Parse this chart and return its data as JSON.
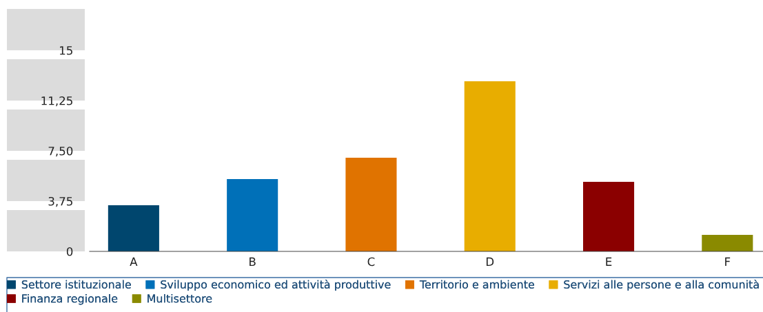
{
  "chart_data": {
    "type": "bar",
    "categories": [
      "A",
      "B",
      "C",
      "D",
      "E",
      "F"
    ],
    "series": [
      {
        "name": "Settore istituzionale",
        "color": "#00466e",
        "values": [
          3.44,
          null,
          null,
          null,
          null,
          null
        ]
      },
      {
        "name": "Sviluppo economico ed attività produttive",
        "color": "#0070b8",
        "values": [
          null,
          5.39,
          null,
          null,
          null,
          null
        ]
      },
      {
        "name": "Territorio e ambiente",
        "color": "#e07300",
        "values": [
          null,
          null,
          6.99,
          null,
          null,
          null
        ]
      },
      {
        "name": "Servizi alle persone e alla comunità",
        "color": "#e8ad00",
        "values": [
          null,
          null,
          null,
          12.69,
          null,
          null
        ]
      },
      {
        "name": "Finanza regionale",
        "color": "#8b0000",
        "values": [
          null,
          null,
          null,
          null,
          5.19,
          null
        ]
      },
      {
        "name": "Multisettore",
        "color": "#8a8a00",
        "values": [
          null,
          null,
          null,
          null,
          null,
          1.23
        ]
      }
    ],
    "ylim": [
      0,
      15
    ],
    "yticks": [
      0,
      {
        "value": 3.75,
        "label": "3,75"
      },
      {
        "value": 7.5,
        "label": "7,50"
      },
      {
        "value": 11.25,
        "label": "11,25"
      },
      15
    ],
    "grid": false,
    "legend": "bottom"
  }
}
